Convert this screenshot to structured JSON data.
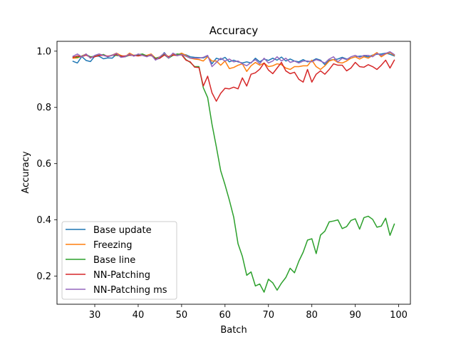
{
  "chart_data": {
    "type": "line",
    "title": "Accuracy",
    "xlabel": "Batch",
    "ylabel": "Accuracy",
    "xlim": [
      21.3,
      102.7
    ],
    "ylim": [
      0.1,
      1.035
    ],
    "xticks": [
      30,
      40,
      50,
      60,
      70,
      80,
      90,
      100
    ],
    "yticks": [
      0.2,
      0.4,
      0.6,
      0.8,
      1.0
    ],
    "grid": false,
    "legend_position": "lower-left",
    "x": [
      25,
      26,
      27,
      28,
      29,
      30,
      31,
      32,
      33,
      34,
      35,
      36,
      37,
      38,
      39,
      40,
      41,
      42,
      43,
      44,
      45,
      46,
      47,
      48,
      49,
      50,
      51,
      52,
      53,
      54,
      55,
      56,
      57,
      58,
      59,
      60,
      61,
      62,
      63,
      64,
      65,
      66,
      67,
      68,
      69,
      70,
      71,
      72,
      73,
      74,
      75,
      76,
      77,
      78,
      79,
      80,
      81,
      82,
      83,
      84,
      85,
      86,
      87,
      88,
      89,
      90,
      91,
      92,
      93,
      94,
      95,
      96,
      97,
      98,
      99
    ],
    "series": [
      {
        "name": "Base update",
        "color": "#1f77b4",
        "values": [
          0.964,
          0.958,
          0.981,
          0.967,
          0.963,
          0.982,
          0.982,
          0.973,
          0.976,
          0.975,
          0.989,
          0.981,
          0.98,
          0.986,
          0.985,
          0.987,
          0.989,
          0.983,
          0.986,
          0.97,
          0.975,
          0.995,
          0.977,
          0.989,
          0.984,
          0.99,
          0.987,
          0.98,
          0.978,
          0.977,
          0.976,
          0.983,
          0.955,
          0.975,
          0.97,
          0.978,
          0.962,
          0.968,
          0.962,
          0.958,
          0.962,
          0.958,
          0.975,
          0.962,
          0.972,
          0.967,
          0.975,
          0.968,
          0.979,
          0.965,
          0.972,
          0.965,
          0.962,
          0.97,
          0.962,
          0.965,
          0.973,
          0.968,
          0.952,
          0.968,
          0.97,
          0.972,
          0.978,
          0.972,
          0.975,
          0.98,
          0.982,
          0.983,
          0.98,
          0.986,
          0.989,
          0.99,
          0.993,
          0.989,
          0.983
        ]
      },
      {
        "name": "Freezing",
        "color": "#ff7f0e",
        "values": [
          0.975,
          0.976,
          0.983,
          0.99,
          0.976,
          0.982,
          0.986,
          0.988,
          0.98,
          0.986,
          0.993,
          0.985,
          0.98,
          0.993,
          0.985,
          0.987,
          0.986,
          0.985,
          0.99,
          0.975,
          0.98,
          0.992,
          0.98,
          0.99,
          0.986,
          0.993,
          0.985,
          0.975,
          0.972,
          0.97,
          0.965,
          0.98,
          0.965,
          0.965,
          0.95,
          0.965,
          0.938,
          0.942,
          0.95,
          0.955,
          0.928,
          0.948,
          0.96,
          0.95,
          0.958,
          0.945,
          0.948,
          0.955,
          0.952,
          0.94,
          0.935,
          0.945,
          0.945,
          0.948,
          0.948,
          0.968,
          0.945,
          0.935,
          0.948,
          0.965,
          0.97,
          0.96,
          0.958,
          0.965,
          0.975,
          0.98,
          0.972,
          0.98,
          0.975,
          0.985,
          0.995,
          0.98,
          0.99,
          0.995,
          0.985
        ]
      },
      {
        "name": "Base line",
        "color": "#2ca02c",
        "values": [
          0.98,
          0.978,
          0.982,
          0.988,
          0.98,
          0.982,
          0.985,
          0.988,
          0.98,
          0.986,
          0.985,
          0.983,
          0.98,
          0.986,
          0.985,
          0.987,
          0.99,
          0.983,
          0.985,
          0.975,
          0.978,
          0.988,
          0.975,
          0.985,
          0.99,
          0.988,
          0.97,
          0.96,
          0.945,
          0.945,
          0.87,
          0.835,
          0.74,
          0.66,
          0.575,
          0.525,
          0.47,
          0.41,
          0.315,
          0.27,
          0.203,
          0.215,
          0.165,
          0.172,
          0.143,
          0.189,
          0.176,
          0.15,
          0.175,
          0.195,
          0.228,
          0.212,
          0.253,
          0.285,
          0.328,
          0.333,
          0.28,
          0.346,
          0.36,
          0.393,
          0.396,
          0.4,
          0.369,
          0.376,
          0.398,
          0.404,
          0.367,
          0.408,
          0.413,
          0.402,
          0.374,
          0.378,
          0.406,
          0.345,
          0.385
        ]
      },
      {
        "name": "NN-Patching",
        "color": "#d62728",
        "values": [
          0.978,
          0.983,
          0.98,
          0.986,
          0.978,
          0.98,
          0.985,
          0.985,
          0.982,
          0.985,
          0.988,
          0.982,
          0.983,
          0.986,
          0.985,
          0.983,
          0.986,
          0.982,
          0.985,
          0.972,
          0.975,
          0.986,
          0.98,
          0.986,
          0.985,
          0.987,
          0.968,
          0.962,
          0.943,
          0.942,
          0.876,
          0.911,
          0.852,
          0.822,
          0.85,
          0.868,
          0.866,
          0.872,
          0.866,
          0.905,
          0.876,
          0.918,
          0.923,
          0.936,
          0.958,
          0.933,
          0.92,
          0.94,
          0.96,
          0.93,
          0.92,
          0.925,
          0.9,
          0.89,
          0.935,
          0.89,
          0.918,
          0.93,
          0.918,
          0.935,
          0.955,
          0.95,
          0.95,
          0.93,
          0.94,
          0.96,
          0.945,
          0.943,
          0.952,
          0.945,
          0.935,
          0.95,
          0.968,
          0.94,
          0.968
        ]
      },
      {
        "name": "NN-Patching ms",
        "color": "#9467bd",
        "values": [
          0.982,
          0.99,
          0.98,
          0.99,
          0.975,
          0.985,
          0.99,
          0.985,
          0.98,
          0.985,
          0.992,
          0.978,
          0.98,
          0.99,
          0.982,
          0.99,
          0.985,
          0.98,
          0.988,
          0.968,
          0.98,
          0.993,
          0.975,
          0.993,
          0.985,
          0.988,
          0.982,
          0.975,
          0.975,
          0.975,
          0.978,
          0.985,
          0.945,
          0.96,
          0.975,
          0.965,
          0.972,
          0.962,
          0.965,
          0.955,
          0.948,
          0.96,
          0.97,
          0.955,
          0.975,
          0.958,
          0.965,
          0.98,
          0.965,
          0.975,
          0.96,
          0.965,
          0.958,
          0.965,
          0.965,
          0.962,
          0.97,
          0.965,
          0.958,
          0.972,
          0.98,
          0.962,
          0.975,
          0.97,
          0.98,
          0.985,
          0.978,
          0.985,
          0.985,
          0.98,
          0.992,
          0.985,
          0.992,
          0.998,
          0.988
        ]
      }
    ]
  }
}
